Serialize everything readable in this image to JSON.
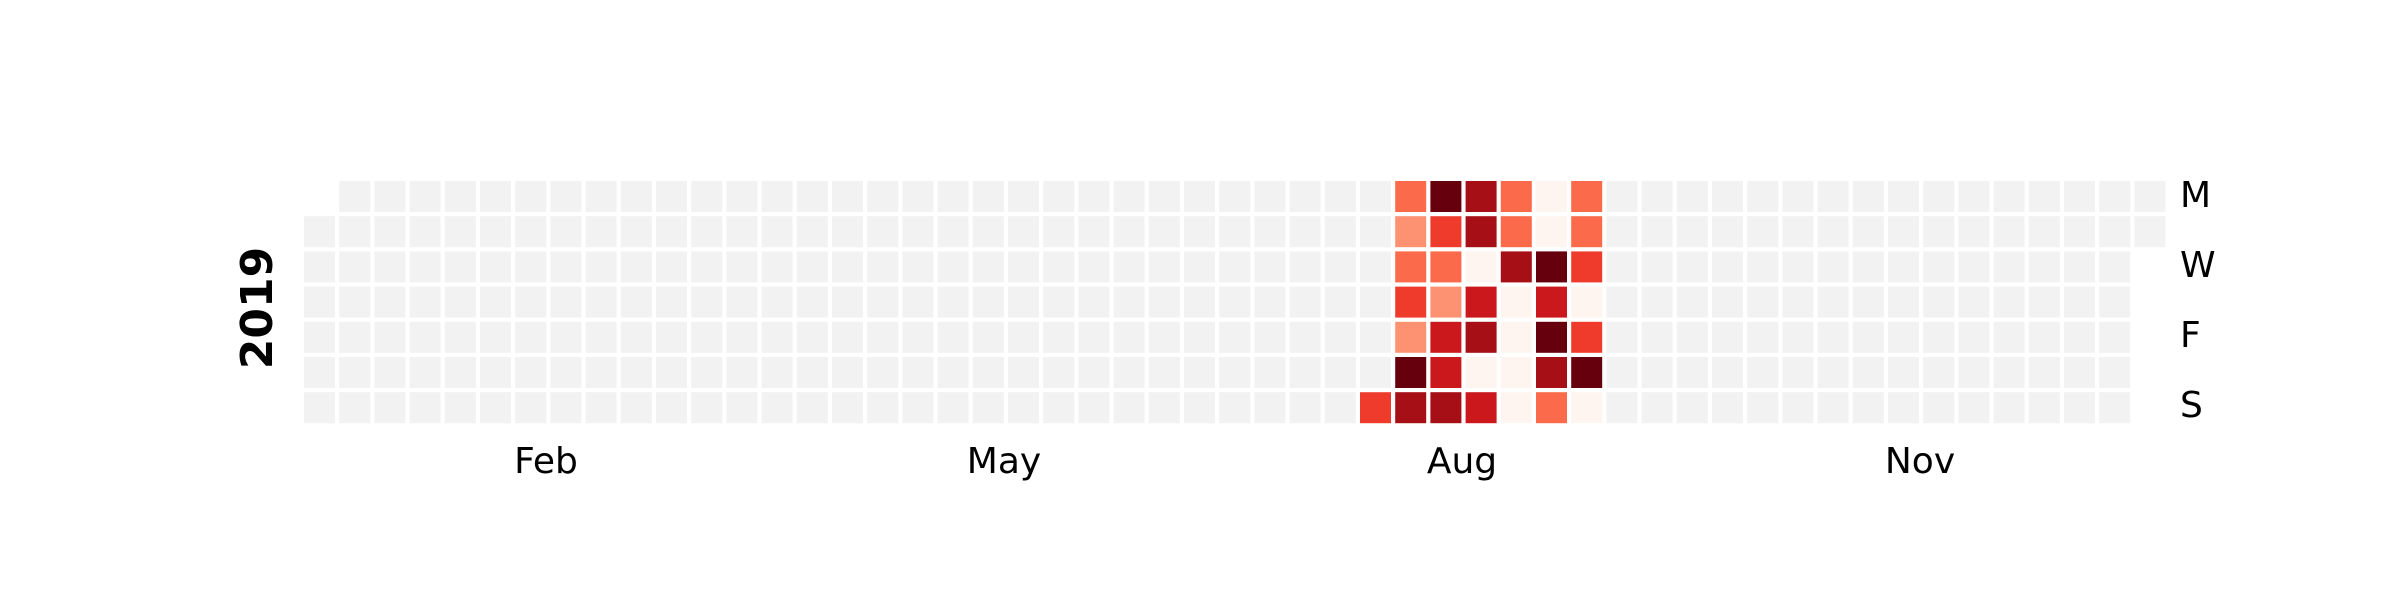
{
  "chart_data": {
    "type": "heatmap",
    "subtype": "calendar",
    "year": "2019",
    "year_label": "2019",
    "month_labels": [
      "Feb",
      "May",
      "Aug",
      "Nov"
    ],
    "day_labels": [
      "M",
      "W",
      "F",
      "S"
    ],
    "colorscale": "Reds",
    "empty_color": "#f2f2f2",
    "palette": [
      "#fff5f0",
      "#fc9272",
      "#fb6a4a",
      "#ef3b2c",
      "#cb181d",
      "#a50f15",
      "#67000d"
    ],
    "levels_by_week": [
      {
        "week": 30,
        "days": [
          null,
          null,
          null,
          null,
          null,
          null,
          3
        ]
      },
      {
        "week": 31,
        "days": [
          2,
          1,
          2,
          3,
          1,
          6,
          5
        ]
      },
      {
        "week": 32,
        "days": [
          6,
          3,
          2,
          1,
          4,
          4,
          5
        ]
      },
      {
        "week": 33,
        "days": [
          5,
          5,
          0,
          4,
          5,
          0,
          4
        ]
      },
      {
        "week": 34,
        "days": [
          2,
          2,
          5,
          0,
          0,
          0,
          0
        ]
      },
      {
        "week": 35,
        "days": [
          0,
          0,
          6,
          4,
          6,
          5,
          2
        ]
      },
      {
        "week": 36,
        "days": [
          2,
          2,
          3,
          0,
          3,
          6,
          0
        ]
      }
    ]
  }
}
